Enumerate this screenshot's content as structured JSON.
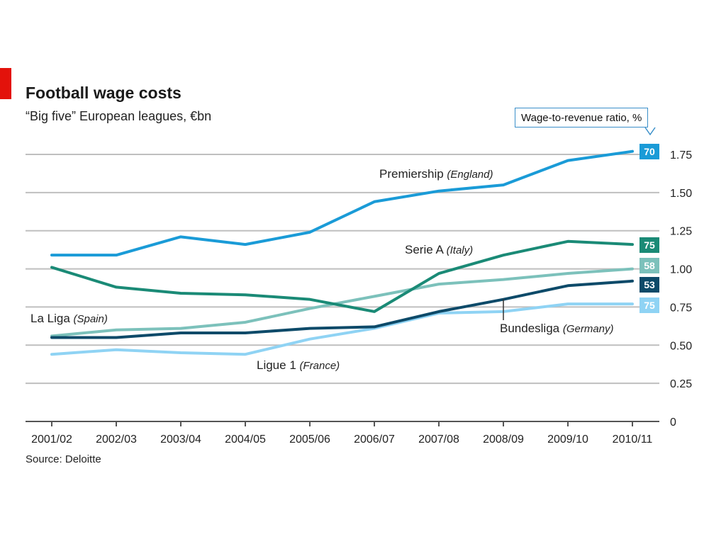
{
  "header": {
    "title": "Football wage costs",
    "subtitle": "“Big five” European leagues, €bn"
  },
  "footer": {
    "source": "Source: Deloitte"
  },
  "ratio_legend": {
    "label": "Wage-to-revenue ratio, %"
  },
  "colors": {
    "accent": "#e3120b",
    "premiership": "#1a9bd7",
    "serie_a": "#1a8a76",
    "la_liga": "#7cc1bb",
    "bundesliga": "#0d4a69",
    "ligue_1": "#8fd3f4",
    "grid": "#bfbfbf",
    "axis": "#555555"
  },
  "chart_data": {
    "type": "line",
    "title": "Football wage costs",
    "subtitle": "“Big five” European leagues, €bn",
    "categories": [
      "2001/02",
      "2002/03",
      "2003/04",
      "2004/05",
      "2005/06",
      "2006/07",
      "2007/08",
      "2008/09",
      "2009/10",
      "2010/11"
    ],
    "ylim": [
      0,
      1.75
    ],
    "yticks": [
      0,
      0.25,
      0.5,
      0.75,
      1.0,
      1.25,
      1.5,
      1.75
    ],
    "ytick_labels": [
      "0",
      "0.25",
      "0.50",
      "0.75",
      "1.00",
      "1.25",
      "1.50",
      "1.75"
    ],
    "grid": "horizontal",
    "y_axis_side": "right",
    "series": [
      {
        "key": "premiership",
        "name": "Premiership",
        "country": "(England)",
        "values": [
          1.09,
          1.09,
          1.21,
          1.16,
          1.24,
          1.44,
          1.51,
          1.55,
          1.71,
          1.77
        ],
        "ratio": "70"
      },
      {
        "key": "serie_a",
        "name": "Serie A",
        "country": "(Italy)",
        "values": [
          1.01,
          0.88,
          0.84,
          0.83,
          0.8,
          0.72,
          0.97,
          1.09,
          1.18,
          1.16
        ],
        "ratio": "75"
      },
      {
        "key": "la_liga",
        "name": "La Liga",
        "country": "(Spain)",
        "values": [
          0.56,
          0.6,
          0.61,
          0.65,
          0.74,
          0.82,
          0.9,
          0.93,
          0.97,
          1.0
        ],
        "ratio": "58"
      },
      {
        "key": "bundesliga",
        "name": "Bundesliga",
        "country": "(Germany)",
        "values": [
          0.55,
          0.55,
          0.58,
          0.58,
          0.61,
          0.62,
          0.72,
          0.8,
          0.89,
          0.92
        ],
        "ratio": "53"
      },
      {
        "key": "ligue_1",
        "name": "Ligue 1",
        "country": "(France)",
        "values": [
          0.44,
          0.47,
          0.45,
          0.44,
          0.54,
          0.61,
          0.71,
          0.72,
          0.77,
          0.77
        ],
        "ratio": "75"
      }
    ]
  }
}
